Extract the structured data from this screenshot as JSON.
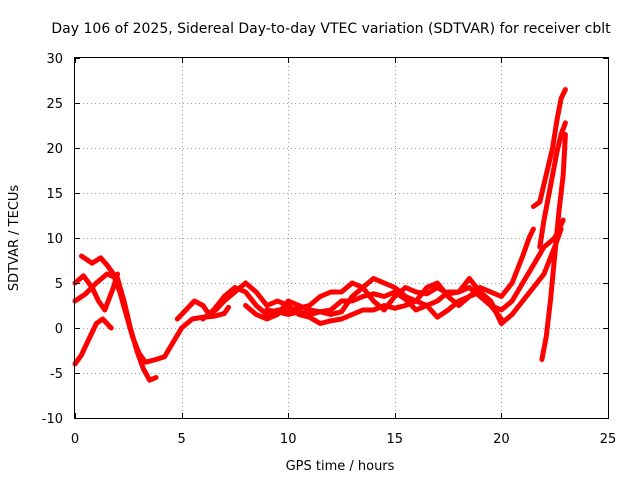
{
  "chart_data": {
    "type": "scatter",
    "title": "Day 106 of 2025, Sidereal Day-to-day VTEC variation (SDTVAR) for receiver cblt",
    "xlabel": "GPS time / hours",
    "ylabel": "SDTVAR / TECUs",
    "xlim": [
      0,
      25
    ],
    "ylim": [
      -10,
      30
    ],
    "xticks": [
      "0",
      "5",
      "10",
      "15",
      "20",
      "25"
    ],
    "yticks": [
      "-10",
      "-5",
      "0",
      "5",
      "10",
      "15",
      "20",
      "25",
      "30"
    ],
    "grid": true,
    "color": "#ff0000",
    "marker": "plus",
    "series": [
      {
        "name": "track-1",
        "points": [
          [
            0.0,
            3.0
          ],
          [
            0.5,
            3.8
          ],
          [
            1.0,
            5.0
          ],
          [
            1.5,
            6.0
          ],
          [
            2.0,
            5.5
          ],
          [
            2.3,
            3.0
          ],
          [
            2.6,
            0.0
          ],
          [
            2.9,
            -2.5
          ],
          [
            3.2,
            -4.5
          ],
          [
            3.5,
            -5.8
          ],
          [
            3.8,
            -5.5
          ]
        ]
      },
      {
        "name": "track-2",
        "points": [
          [
            0.3,
            8.0
          ],
          [
            0.8,
            7.2
          ],
          [
            1.2,
            7.8
          ],
          [
            1.5,
            7.0
          ],
          [
            1.8,
            6.0
          ],
          [
            2.1,
            4.0
          ],
          [
            2.4,
            1.5
          ],
          [
            2.7,
            -1.0
          ],
          [
            3.0,
            -2.8
          ],
          [
            3.3,
            -3.8
          ],
          [
            3.8,
            -3.5
          ],
          [
            4.2,
            -3.2
          ],
          [
            4.5,
            -2.0
          ],
          [
            5.0,
            0.0
          ],
          [
            5.5,
            1.0
          ],
          [
            6.0,
            1.2
          ],
          [
            6.5,
            1.3
          ],
          [
            7.0,
            1.6
          ],
          [
            7.2,
            2.3
          ]
        ]
      },
      {
        "name": "track-3",
        "points": [
          [
            0.0,
            -4.0
          ],
          [
            0.3,
            -3.0
          ],
          [
            0.7,
            -1.0
          ],
          [
            1.0,
            0.5
          ],
          [
            1.3,
            1.0
          ],
          [
            1.7,
            0.0
          ]
        ]
      },
      {
        "name": "track-4",
        "points": [
          [
            0.0,
            5.0
          ],
          [
            0.4,
            5.8
          ],
          [
            0.8,
            4.5
          ],
          [
            1.1,
            3.0
          ],
          [
            1.4,
            2.0
          ],
          [
            1.8,
            4.5
          ],
          [
            2.0,
            6.0
          ]
        ]
      },
      {
        "name": "track-5",
        "points": [
          [
            4.8,
            1.0
          ],
          [
            5.2,
            2.0
          ],
          [
            5.6,
            3.0
          ],
          [
            6.0,
            2.5
          ],
          [
            6.3,
            1.5
          ],
          [
            6.6,
            2.0
          ],
          [
            7.0,
            3.0
          ],
          [
            7.5,
            4.0
          ],
          [
            8.0,
            5.0
          ],
          [
            8.5,
            4.0
          ],
          [
            9.0,
            2.5
          ],
          [
            9.5,
            3.0
          ],
          [
            10.0,
            2.5
          ],
          [
            10.5,
            1.5
          ],
          [
            11.0,
            1.2
          ],
          [
            11.5,
            0.5
          ],
          [
            12.0,
            0.8
          ],
          [
            12.5,
            1.0
          ],
          [
            13.0,
            1.5
          ],
          [
            13.5,
            2.0
          ],
          [
            14.0,
            2.0
          ],
          [
            14.5,
            2.5
          ],
          [
            15.0,
            2.2
          ],
          [
            15.5,
            2.5
          ],
          [
            16.0,
            3.0
          ],
          [
            16.5,
            2.5
          ],
          [
            17.0,
            1.2
          ],
          [
            17.5,
            2.0
          ],
          [
            18.0,
            3.0
          ],
          [
            18.5,
            3.5
          ],
          [
            19.0,
            4.0
          ],
          [
            19.5,
            3.0
          ],
          [
            20.0,
            0.5
          ],
          [
            20.5,
            1.5
          ],
          [
            21.0,
            3.0
          ],
          [
            21.5,
            4.5
          ],
          [
            22.0,
            6.0
          ],
          [
            22.5,
            9.0
          ],
          [
            22.8,
            11.0
          ]
        ]
      },
      {
        "name": "track-6",
        "points": [
          [
            6.0,
            1.0
          ],
          [
            6.5,
            2.0
          ],
          [
            7.0,
            3.5
          ],
          [
            7.5,
            4.5
          ],
          [
            8.0,
            4.0
          ],
          [
            8.5,
            2.5
          ],
          [
            9.0,
            1.5
          ],
          [
            9.5,
            2.0
          ],
          [
            10.0,
            2.0
          ],
          [
            10.5,
            2.2
          ],
          [
            11.0,
            2.5
          ],
          [
            11.5,
            3.5
          ],
          [
            12.0,
            4.0
          ],
          [
            12.5,
            4.0
          ],
          [
            13.0,
            5.0
          ],
          [
            13.5,
            4.5
          ],
          [
            14.0,
            3.0
          ],
          [
            14.5,
            2.0
          ],
          [
            15.0,
            3.5
          ],
          [
            15.5,
            4.5
          ],
          [
            16.0,
            4.0
          ],
          [
            16.5,
            3.8
          ],
          [
            17.0,
            4.5
          ],
          [
            17.5,
            3.8
          ],
          [
            18.0,
            4.0
          ],
          [
            18.5,
            5.5
          ],
          [
            19.0,
            4.0
          ],
          [
            19.5,
            2.5
          ],
          [
            20.0,
            2.0
          ],
          [
            20.5,
            3.0
          ],
          [
            21.0,
            5.0
          ],
          [
            21.5,
            7.0
          ],
          [
            22.0,
            9.0
          ],
          [
            22.5,
            10.0
          ],
          [
            22.9,
            12.0
          ]
        ]
      },
      {
        "name": "track-7",
        "points": [
          [
            8.0,
            2.5
          ],
          [
            8.5,
            1.5
          ],
          [
            9.0,
            1.0
          ],
          [
            9.5,
            1.5
          ],
          [
            10.0,
            3.0
          ],
          [
            10.5,
            2.5
          ],
          [
            11.0,
            2.0
          ],
          [
            11.5,
            1.8
          ],
          [
            12.0,
            1.5
          ],
          [
            12.5,
            1.8
          ],
          [
            13.0,
            3.5
          ],
          [
            13.5,
            4.5
          ],
          [
            14.0,
            5.5
          ],
          [
            14.5,
            5.0
          ],
          [
            15.0,
            4.5
          ],
          [
            15.5,
            3.5
          ],
          [
            16.0,
            3.0
          ],
          [
            16.5,
            4.5
          ],
          [
            17.0,
            5.0
          ],
          [
            17.5,
            3.5
          ],
          [
            18.0,
            2.5
          ],
          [
            18.5,
            3.5
          ],
          [
            19.0,
            4.5
          ],
          [
            19.5,
            4.0
          ],
          [
            20.0,
            3.5
          ],
          [
            20.5,
            5.0
          ],
          [
            21.0,
            8.0
          ],
          [
            21.3,
            10.0
          ],
          [
            21.5,
            11.0
          ]
        ]
      },
      {
        "name": "track-8",
        "points": [
          [
            9.0,
            2.0
          ],
          [
            9.5,
            1.8
          ],
          [
            10.0,
            1.5
          ],
          [
            10.5,
            1.8
          ],
          [
            11.0,
            1.5
          ],
          [
            11.5,
            1.8
          ],
          [
            12.0,
            2.0
          ],
          [
            12.5,
            3.0
          ],
          [
            13.0,
            3.0
          ],
          [
            13.5,
            3.5
          ],
          [
            14.0,
            3.8
          ],
          [
            14.5,
            3.5
          ],
          [
            15.0,
            4.0
          ],
          [
            15.5,
            3.2
          ],
          [
            16.0,
            2.0
          ],
          [
            16.5,
            2.5
          ],
          [
            17.0,
            3.0
          ],
          [
            17.5,
            4.0
          ],
          [
            18.0,
            4.0
          ],
          [
            18.5,
            4.5
          ],
          [
            19.0,
            3.5
          ],
          [
            19.5,
            2.5
          ],
          [
            20.0,
            1.0
          ]
        ]
      },
      {
        "name": "track-9",
        "points": [
          [
            21.5,
            13.5
          ],
          [
            21.8,
            14.0
          ],
          [
            22.0,
            16.0
          ],
          [
            22.2,
            18.0
          ],
          [
            22.4,
            20.0
          ],
          [
            22.6,
            23.0
          ],
          [
            22.8,
            25.5
          ],
          [
            23.0,
            26.5
          ]
        ]
      },
      {
        "name": "track-10",
        "points": [
          [
            21.8,
            9.0
          ],
          [
            22.0,
            12.0
          ],
          [
            22.2,
            14.5
          ],
          [
            22.4,
            17.0
          ],
          [
            22.6,
            19.5
          ],
          [
            22.8,
            21.5
          ],
          [
            23.0,
            22.8
          ]
        ]
      },
      {
        "name": "track-11",
        "points": [
          [
            21.9,
            -3.5
          ],
          [
            22.1,
            -1.0
          ],
          [
            22.3,
            3.0
          ],
          [
            22.5,
            8.0
          ],
          [
            22.7,
            13.0
          ],
          [
            22.9,
            17.0
          ],
          [
            23.0,
            21.5
          ]
        ]
      }
    ]
  }
}
